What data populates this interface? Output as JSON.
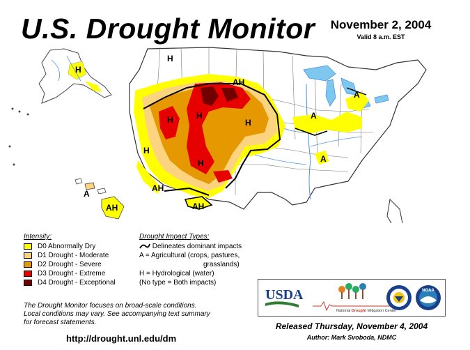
{
  "title": "U.S. Drought Monitor",
  "date": "November 2, 2004",
  "valid_time": "Valid 8 a.m. EST",
  "legend": {
    "heading": "Intensity:",
    "items": [
      {
        "label": "D0 Abnormally Dry",
        "color": "#ffff00"
      },
      {
        "label": "D1 Drought - Moderate",
        "color": "#fcd37f"
      },
      {
        "label": "D2 Drought - Severe",
        "color": "#e69800"
      },
      {
        "label": "D3 Drought - Extreme",
        "color": "#e60000"
      },
      {
        "label": "D4 Drought - Exceptional",
        "color": "#730000"
      }
    ]
  },
  "impacts": {
    "heading": "Drought Impact Types:",
    "delineates": "Delineates dominant impacts",
    "agricultural_1": "A = Agricultural (crops, pastures,",
    "agricultural_2": "grasslands)",
    "hydrological": "H = Hydrological (water)",
    "both": "(No type = Both impacts)"
  },
  "disclaimer": {
    "line1": "The Drought Monitor focuses on broad-scale conditions.",
    "line2": "Local conditions may vary.  See accompanying text summary",
    "line3": "for forecast statements."
  },
  "url": "http://drought.unl.edu/dm",
  "logos": {
    "usda": "USDA",
    "ndmc": "National Drought Mitigation Center",
    "ndmc_prefix": "National",
    "ndmc_drought": "Drought",
    "ndmc_suffix": "Mitigation Center",
    "noaa": "NOAA"
  },
  "released": "Released Thursday, November 4, 2004",
  "author": "Author: Mark Svoboda, NDMC",
  "map_labels": {
    "ak_h": "H",
    "mt_h": "H",
    "ah_north": "AH",
    "ca_h": "H",
    "nv_h": "H",
    "ut_h": "H",
    "ne_h": "H",
    "nm_h": "H",
    "socal_ah": "AH",
    "az_ah": "AH",
    "hi_a": "A",
    "hi_ah": "AH",
    "il_a": "A",
    "mo_a": "A",
    "mi_a": "A"
  }
}
